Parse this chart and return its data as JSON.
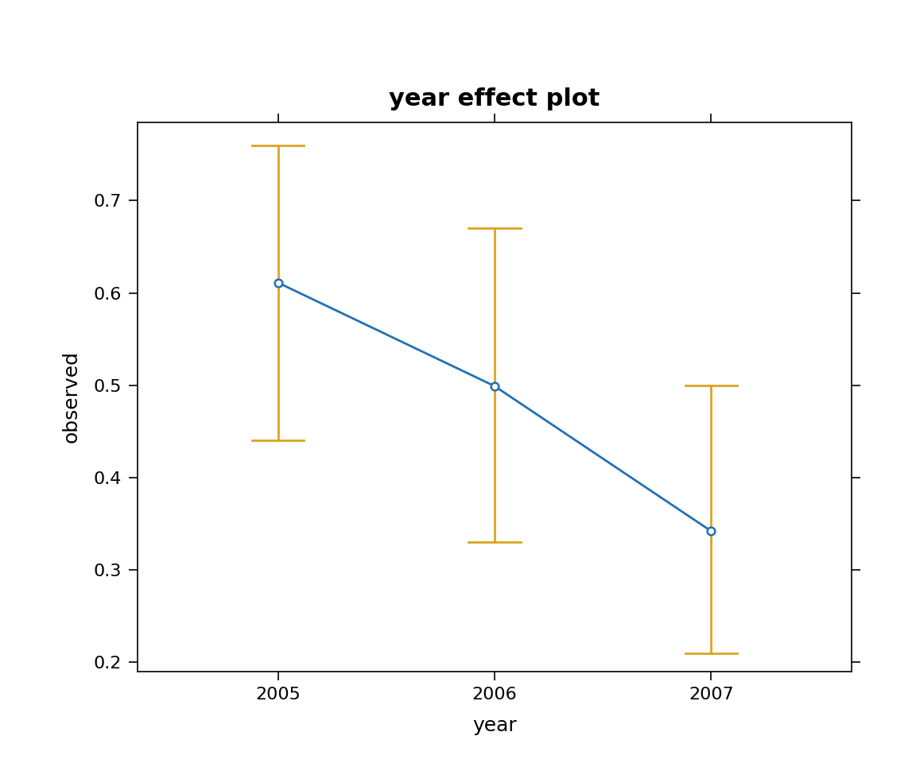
{
  "title": "year effect plot",
  "xlabel": "year",
  "ylabel": "observed",
  "x": [
    2005,
    2006,
    2007
  ],
  "y": [
    0.611,
    0.499,
    0.342
  ],
  "ci_lower": [
    0.44,
    0.33,
    0.21
  ],
  "ci_upper": [
    0.76,
    0.67,
    0.5
  ],
  "line_color": "#2171b5",
  "ci_color": "#DAA520",
  "marker_facecolor": "white",
  "marker_edgecolor": "#2171b5",
  "marker_size": 7,
  "ylim": [
    0.19,
    0.785
  ],
  "yticks": [
    0.2,
    0.3,
    0.4,
    0.5,
    0.6,
    0.7
  ],
  "xticks": [
    2005,
    2006,
    2007
  ],
  "xlim": [
    2004.35,
    2007.65
  ],
  "title_fontsize": 22,
  "label_fontsize": 18,
  "tick_fontsize": 16,
  "ci_linewidth": 2.0,
  "line_linewidth": 2.0,
  "cap_size": 8,
  "cap_thick": 2.0
}
